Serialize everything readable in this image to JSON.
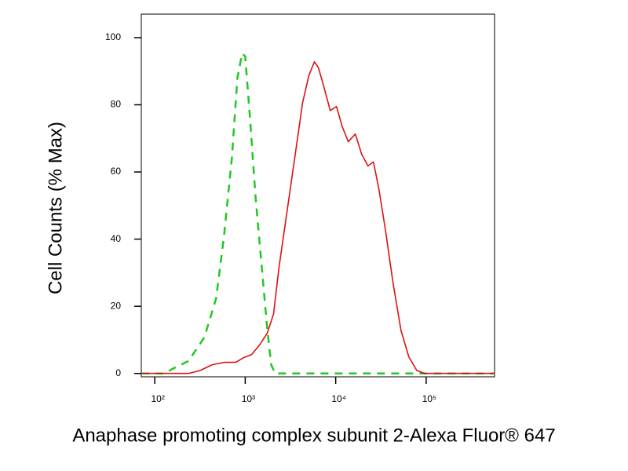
{
  "chart_data": {
    "type": "line",
    "x_label": "Anaphase promoting complex subunit 2-Alexa Fluor® 647",
    "y_label": "Cell Counts (% Max)",
    "xscale": "log",
    "xlim": [
      71,
      570000
    ],
    "ylim": [
      -1,
      107
    ],
    "xticks": [
      {
        "value": 100,
        "label": "10²"
      },
      {
        "value": 1000,
        "label": "10³"
      },
      {
        "value": 10000,
        "label": "10⁴"
      },
      {
        "value": 100000,
        "label": "10⁵"
      }
    ],
    "yticks": [
      0,
      20,
      40,
      60,
      80,
      100
    ],
    "series": [
      {
        "color": "#22c722",
        "linestyle": "dashed",
        "x": [
          71,
          130,
          158,
          236,
          353,
          477,
          582,
          711,
          819,
          923,
          1000,
          1128,
          1297,
          1493,
          1751,
          1936,
          2140,
          570000
        ],
        "values": [
          0,
          0,
          1.4,
          3.7,
          10.7,
          22.4,
          40.8,
          64,
          87.9,
          95.3,
          94.4,
          76.2,
          52.9,
          34.3,
          13.3,
          2.6,
          0,
          0
        ]
      },
      {
        "color": "#dd1111",
        "linestyle": "solid",
        "x": [
          71,
          236,
          319,
          431,
          582,
          787,
          961,
          1174,
          1435,
          1751,
          2056,
          2366,
          2890,
          3530,
          4313,
          5061,
          5821,
          6438,
          7413,
          8700,
          10200,
          11740,
          13780,
          16490,
          19350,
          22730,
          26140,
          30070,
          35300,
          43130,
          52700,
          64400,
          78700,
          96100,
          570000
        ],
        "values": [
          0,
          0,
          0.9,
          2.6,
          3.3,
          3.3,
          4.7,
          5.6,
          8.4,
          12,
          17.7,
          31.7,
          48,
          64.3,
          80.7,
          88.8,
          92.8,
          91.1,
          85.3,
          78.3,
          79.5,
          73.7,
          69,
          71.3,
          65.3,
          61.8,
          63,
          54.8,
          43.1,
          26.8,
          12.8,
          4.9,
          0.9,
          0,
          0
        ]
      }
    ]
  }
}
